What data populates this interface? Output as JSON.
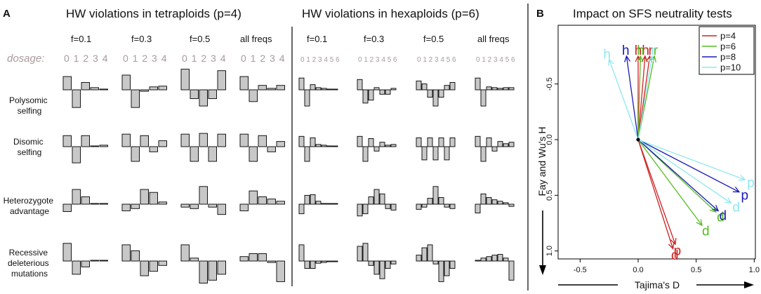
{
  "figure": {
    "panel_a_label": "A",
    "panel_b_label": "B",
    "tetra_title": "HW violations in tetraploids (p=4)",
    "hexa_title": "HW violations in hexaploids (p=6)",
    "freq_labels": [
      "f=0.1",
      "f=0.3",
      "f=0.5",
      "all freqs"
    ],
    "dosage_label": "dosage:",
    "dosage_tetra": "0 1 2 3 4",
    "dosage_hexa": "0 1 2 3 4 5 6",
    "row_labels": [
      [
        "Polysomic",
        "selfing"
      ],
      [
        "Disomic",
        "selfing"
      ],
      [
        "Heterozygote",
        "advantage"
      ],
      [
        "Recessive",
        "deleterious",
        "mutations"
      ]
    ]
  },
  "chart_data": [
    {
      "type": "bar",
      "panel": "A",
      "title": "HW violations in tetraploids (p=4)",
      "x_label": "dosage",
      "categories": [
        "0",
        "1",
        "2",
        "3",
        "4"
      ],
      "column_labels": [
        "f=0.1",
        "f=0.3",
        "f=0.5",
        "all freqs"
      ],
      "row_labels": [
        "Polysomic selfing",
        "Disomic selfing",
        "Heterozygote advantage",
        "Recessive deleterious mutations"
      ],
      "cells": [
        [
          [
            0.9,
            -1.2,
            0.5,
            0.15,
            0.05
          ],
          [
            1.0,
            -1.2,
            -0.1,
            0.2,
            0.25
          ],
          [
            1.4,
            -0.6,
            -1.1,
            -0.6,
            1.3
          ],
          [
            0.9,
            -0.8,
            0.3,
            0.1,
            0.3
          ]
        ],
        [
          [
            0.75,
            -1.1,
            0.75,
            0.05,
            0.1
          ],
          [
            0.85,
            -1.0,
            0.75,
            -0.35,
            0.4
          ],
          [
            0.85,
            -1.0,
            0.9,
            -1.0,
            0.85
          ],
          [
            0.85,
            -1.0,
            0.75,
            -0.35,
            0.35
          ]
        ],
        [
          [
            -0.5,
            1.0,
            0.5,
            0.05,
            0.05
          ],
          [
            -0.45,
            -0.3,
            1.0,
            0.8,
            0.15
          ],
          [
            -0.2,
            -0.3,
            1.2,
            -0.2,
            -0.7
          ],
          [
            -0.45,
            0.9,
            0.5,
            0.35,
            0.2
          ]
        ],
        [
          [
            1.2,
            -0.9,
            -0.4,
            0.05,
            0.05
          ],
          [
            1.1,
            0.7,
            -1.0,
            -0.7,
            -0.3
          ],
          [
            1.1,
            0.2,
            -1.5,
            -1.3,
            -0.9
          ],
          [
            0.3,
            0.5,
            0.5,
            -0.1,
            -1.4
          ]
        ]
      ]
    },
    {
      "type": "bar",
      "panel": "A",
      "title": "HW violations in hexaploids (p=6)",
      "x_label": "dosage",
      "categories": [
        "0",
        "1",
        "2",
        "3",
        "4",
        "5",
        "6"
      ],
      "column_labels": [
        "f=0.1",
        "f=0.3",
        "f=0.5",
        "all freqs"
      ],
      "row_labels": [
        "Polysomic selfing",
        "Disomic selfing",
        "Heterozygote advantage",
        "Recessive deleterious mutations"
      ],
      "cells": [
        [
          [
            0.8,
            -1.1,
            0.35,
            0.15,
            0.1,
            0.05,
            0.02
          ],
          [
            0.7,
            -0.9,
            -0.7,
            0.15,
            -0.3,
            -0.3,
            0.1
          ],
          [
            0.6,
            0.4,
            -0.5,
            -1.1,
            -0.5,
            0.3,
            0.5
          ],
          [
            0.8,
            -1.1,
            0.2,
            0.15,
            0.1,
            0.15,
            0.15
          ]
        ],
        [
          [
            0.7,
            -1.0,
            0.6,
            0.15,
            0.1,
            0.05,
            0.02
          ],
          [
            0.7,
            -1.0,
            0.55,
            -0.3,
            0.3,
            0.1,
            0.15
          ],
          [
            0.6,
            -0.9,
            0.6,
            -0.9,
            0.6,
            -0.9,
            0.6
          ],
          [
            0.7,
            -1.0,
            0.6,
            -0.3,
            0.35,
            0.2,
            0.3
          ]
        ],
        [
          [
            -0.65,
            0.6,
            0.65,
            0.2,
            0.05,
            0.02,
            0.01
          ],
          [
            -0.8,
            -0.65,
            0.5,
            1.0,
            0.7,
            -0.3,
            -0.4
          ],
          [
            -0.35,
            -0.2,
            0.4,
            1.2,
            0.45,
            -0.2,
            -0.3
          ],
          [
            -0.6,
            0.7,
            0.45,
            0.3,
            0.2,
            0.1,
            -0.15
          ]
        ],
        [
          [
            1.1,
            -0.5,
            -0.5,
            -0.15,
            -0.1,
            -0.05,
            -0.02
          ],
          [
            1.0,
            1.2,
            -0.3,
            -0.9,
            -1.2,
            -0.5,
            -0.2
          ],
          [
            0.4,
            0.9,
            1.1,
            -0.2,
            -1.4,
            -1.0,
            -0.5
          ],
          [
            0.05,
            0.2,
            0.3,
            0.4,
            0.45,
            0.2,
            -1.3
          ]
        ]
      ]
    },
    {
      "type": "scatter",
      "panel": "B",
      "title": "Impact on SFS neutrality tests",
      "xlabel": "Tajima's D",
      "ylabel": "Fay and Wu's H",
      "xlim": [
        -0.5,
        1.0
      ],
      "ylim_top_to_bottom": [
        -0.5,
        1.0
      ],
      "y_axis_reversed": true,
      "xticks": [
        "-0.5",
        "0.0",
        "0.5",
        "1.0"
      ],
      "yticks": [
        "-0.5",
        "0.0",
        "0.5",
        "1.0"
      ],
      "origin": [
        0,
        0
      ],
      "legend_position": "top-right",
      "series": [
        {
          "name": "p=4",
          "color": "#cc2222",
          "vectors": [
            {
              "label": "h",
              "x": 0.0,
              "y": -0.75
            },
            {
              "label": "h",
              "x": 0.06,
              "y": -0.75
            },
            {
              "label": "r",
              "x": 0.1,
              "y": -0.75
            },
            {
              "label": "d",
              "x": 0.3,
              "y": 0.98
            },
            {
              "label": "p",
              "x": 0.32,
              "y": 0.94
            }
          ]
        },
        {
          "name": "p=6",
          "color": "#55bb22",
          "vectors": [
            {
              "label": "h",
              "x": 0.02,
              "y": -0.75
            },
            {
              "label": "r",
              "x": 0.14,
              "y": -0.75
            },
            {
              "label": "d",
              "x": 0.55,
              "y": 0.77
            },
            {
              "label": "d",
              "x": 0.67,
              "y": 0.65
            }
          ]
        },
        {
          "name": "p=8",
          "color": "#1a1ab8",
          "vectors": [
            {
              "label": "h",
              "x": -0.1,
              "y": -0.75
            },
            {
              "label": "d",
              "x": 0.69,
              "y": 0.64
            },
            {
              "label": "p",
              "x": 0.87,
              "y": 0.47
            }
          ]
        },
        {
          "name": "p=10",
          "color": "#8ee8f0",
          "vectors": [
            {
              "label": "h",
              "x": -0.25,
              "y": -0.72
            },
            {
              "label": "r",
              "x": 0.12,
              "y": -0.75
            },
            {
              "label": "d",
              "x": 0.8,
              "y": 0.57
            },
            {
              "label": "p",
              "x": 0.92,
              "y": 0.36
            }
          ]
        }
      ]
    }
  ]
}
